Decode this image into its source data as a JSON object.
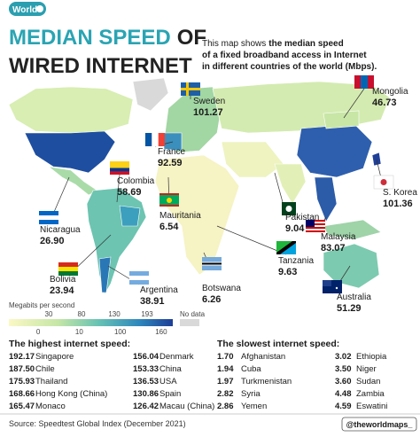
{
  "header": {
    "badge": "World",
    "title_part1": "MEDIAN SPEED",
    "title_part2": "OF",
    "title_line2": "WIRED INTERNET",
    "description": {
      "intro": "This map shows",
      "bold_lines": [
        "the median speed",
        "of a fixed broadband access in Internet",
        "in different countries of the world (Mbps)."
      ]
    }
  },
  "map_labels": [
    {
      "country": "Sweden",
      "value": "101.27"
    },
    {
      "country": "Mongolia",
      "value": "46.73"
    },
    {
      "country": "France",
      "value": "92.59"
    },
    {
      "country": "Colombia",
      "value": "58.69"
    },
    {
      "country": "Mauritania",
      "value": "6.54"
    },
    {
      "country": "Nicaragua",
      "value": "26.90"
    },
    {
      "country": "Pakistan",
      "value": "9.04"
    },
    {
      "country": "S. Korea",
      "value": "101.36"
    },
    {
      "country": "Malaysia",
      "value": "83.07"
    },
    {
      "country": "Tanzania",
      "value": "9.63"
    },
    {
      "country": "Bolivia",
      "value": "23.94"
    },
    {
      "country": "Argentina",
      "value": "38.91"
    },
    {
      "country": "Botswana",
      "value": "6.26"
    },
    {
      "country": "Australia",
      "value": "51.29"
    }
  ],
  "legend": {
    "title": "Megabits per second",
    "upper_ticks": [
      30,
      80,
      130,
      193
    ],
    "lower_ticks": [
      0,
      10,
      100,
      160
    ],
    "no_data": "No data"
  },
  "lists": {
    "highest": {
      "title": "The highest internet speed:",
      "items": [
        {
          "value": "192.17",
          "name": "Singapore"
        },
        {
          "value": "187.50",
          "name": "Chile"
        },
        {
          "value": "175.93",
          "name": "Thailand"
        },
        {
          "value": "168.66",
          "name": "Hong Kong (China)"
        },
        {
          "value": "165.47",
          "name": "Monaco"
        },
        {
          "value": "156.04",
          "name": "Denmark"
        },
        {
          "value": "153.33",
          "name": "China"
        },
        {
          "value": "136.53",
          "name": "USA"
        },
        {
          "value": "130.86",
          "name": "Spain"
        },
        {
          "value": "126.42",
          "name": "Macau (China)"
        }
      ]
    },
    "slowest": {
      "title": "The slowest internet speed:",
      "items": [
        {
          "value": "1.70",
          "name": "Afghanistan"
        },
        {
          "value": "1.94",
          "name": "Cuba"
        },
        {
          "value": "1.97",
          "name": "Turkmenistan"
        },
        {
          "value": "2.82",
          "name": "Syria"
        },
        {
          "value": "2.86",
          "name": "Yemen"
        },
        {
          "value": "3.02",
          "name": "Ethiopia"
        },
        {
          "value": "3.50",
          "name": "Niger"
        },
        {
          "value": "3.60",
          "name": "Sudan"
        },
        {
          "value": "4.48",
          "name": "Zambia"
        },
        {
          "value": "4.59",
          "name": "Eswatini"
        }
      ]
    }
  },
  "footer": {
    "source": "Source: Speedtest Global Index (December 2021)",
    "handle": "@theworldmaps_"
  }
}
